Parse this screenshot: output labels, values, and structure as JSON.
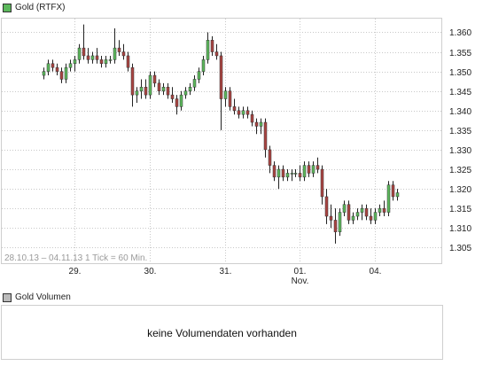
{
  "header": {
    "instrument_label": "Gold (RTFX)",
    "swatch_color": "#5cb85c"
  },
  "info_text": "28.10.13 – 04.11.13   1 Tick = 60 Min.",
  "volume": {
    "label": "Gold Volumen",
    "swatch_color": "#bbbbbb",
    "message": "keine Volumendaten vorhanden"
  },
  "colors": {
    "up": "#5cb85c",
    "down": "#a94442",
    "wick": "#222222",
    "grid": "#c8c8c8"
  },
  "chart_data": {
    "type": "candlestick",
    "x_labels": [
      {
        "label": "29.",
        "x": 7
      },
      {
        "label": "30.",
        "x": 24
      },
      {
        "label": "31.",
        "x": 41
      },
      {
        "label": "01.",
        "sublabel": "Nov.",
        "x": 58
      },
      {
        "label": "04.",
        "x": 75
      }
    ],
    "xlim": [
      -9.5,
      90
    ],
    "ylim": [
      1.301,
      1.3635
    ],
    "y_ticks": [
      1.305,
      1.31,
      1.315,
      1.32,
      1.325,
      1.33,
      1.335,
      1.34,
      1.345,
      1.35,
      1.355,
      1.36
    ],
    "y_tick_labels": [
      "1.305",
      "1.310",
      "1.315",
      "1.320",
      "1.325",
      "1.330",
      "1.335",
      "1.340",
      "1.345",
      "1.350",
      "1.355",
      "1.360"
    ],
    "candles": [
      [
        1.349,
        1.351,
        1.348,
        1.35
      ],
      [
        1.35,
        1.353,
        1.349,
        1.352
      ],
      [
        1.352,
        1.353,
        1.35,
        1.351
      ],
      [
        1.351,
        1.352,
        1.349,
        1.35
      ],
      [
        1.35,
        1.351,
        1.347,
        1.348
      ],
      [
        1.348,
        1.352,
        1.347,
        1.351
      ],
      [
        1.351,
        1.353,
        1.35,
        1.352
      ],
      [
        1.352,
        1.354,
        1.35,
        1.353
      ],
      [
        1.353,
        1.357,
        1.352,
        1.356
      ],
      [
        1.356,
        1.362,
        1.353,
        1.354
      ],
      [
        1.354,
        1.356,
        1.352,
        1.353
      ],
      [
        1.353,
        1.355,
        1.352,
        1.354
      ],
      [
        1.354,
        1.356,
        1.352,
        1.353
      ],
      [
        1.353,
        1.354,
        1.351,
        1.352
      ],
      [
        1.352,
        1.354,
        1.351,
        1.353
      ],
      [
        1.353,
        1.354,
        1.352,
        1.353
      ],
      [
        1.353,
        1.361,
        1.352,
        1.356
      ],
      [
        1.356,
        1.358,
        1.354,
        1.355
      ],
      [
        1.355,
        1.357,
        1.353,
        1.354
      ],
      [
        1.354,
        1.355,
        1.35,
        1.351
      ],
      [
        1.351,
        1.352,
        1.341,
        1.344
      ],
      [
        1.344,
        1.346,
        1.342,
        1.345
      ],
      [
        1.345,
        1.348,
        1.343,
        1.346
      ],
      [
        1.346,
        1.348,
        1.343,
        1.344
      ],
      [
        1.344,
        1.35,
        1.343,
        1.349
      ],
      [
        1.349,
        1.35,
        1.346,
        1.347
      ],
      [
        1.347,
        1.348,
        1.344,
        1.345
      ],
      [
        1.345,
        1.347,
        1.344,
        1.346
      ],
      [
        1.346,
        1.347,
        1.343,
        1.344
      ],
      [
        1.344,
        1.346,
        1.342,
        1.343
      ],
      [
        1.343,
        1.344,
        1.339,
        1.341
      ],
      [
        1.341,
        1.345,
        1.34,
        1.344
      ],
      [
        1.344,
        1.346,
        1.343,
        1.345
      ],
      [
        1.345,
        1.347,
        1.344,
        1.346
      ],
      [
        1.346,
        1.349,
        1.345,
        1.348
      ],
      [
        1.348,
        1.351,
        1.347,
        1.35
      ],
      [
        1.35,
        1.354,
        1.349,
        1.353
      ],
      [
        1.353,
        1.36,
        1.352,
        1.358
      ],
      [
        1.358,
        1.359,
        1.354,
        1.355
      ],
      [
        1.355,
        1.357,
        1.353,
        1.354
      ],
      [
        1.354,
        1.355,
        1.335,
        1.343
      ],
      [
        1.343,
        1.346,
        1.341,
        1.345
      ],
      [
        1.345,
        1.346,
        1.34,
        1.341
      ],
      [
        1.341,
        1.343,
        1.339,
        1.34
      ],
      [
        1.34,
        1.341,
        1.338,
        1.339
      ],
      [
        1.339,
        1.341,
        1.338,
        1.34
      ],
      [
        1.34,
        1.341,
        1.338,
        1.339
      ],
      [
        1.339,
        1.34,
        1.336,
        1.337
      ],
      [
        1.337,
        1.338,
        1.334,
        1.336
      ],
      [
        1.336,
        1.338,
        1.334,
        1.337
      ],
      [
        1.337,
        1.338,
        1.328,
        1.33
      ],
      [
        1.33,
        1.331,
        1.324,
        1.326
      ],
      [
        1.326,
        1.327,
        1.322,
        1.323
      ],
      [
        1.323,
        1.326,
        1.32,
        1.325
      ],
      [
        1.325,
        1.326,
        1.322,
        1.323
      ],
      [
        1.323,
        1.325,
        1.322,
        1.324
      ],
      [
        1.324,
        1.325,
        1.322,
        1.324
      ],
      [
        1.324,
        1.325,
        1.323,
        1.324
      ],
      [
        1.324,
        1.326,
        1.322,
        1.323
      ],
      [
        1.323,
        1.327,
        1.322,
        1.326
      ],
      [
        1.326,
        1.327,
        1.323,
        1.324
      ],
      [
        1.324,
        1.327,
        1.323,
        1.326
      ],
      [
        1.326,
        1.328,
        1.324,
        1.325
      ],
      [
        1.325,
        1.326,
        1.316,
        1.318
      ],
      [
        1.318,
        1.32,
        1.311,
        1.313
      ],
      [
        1.313,
        1.316,
        1.31,
        1.312
      ],
      [
        1.312,
        1.315,
        1.306,
        1.309
      ],
      [
        1.309,
        1.315,
        1.308,
        1.314
      ],
      [
        1.314,
        1.317,
        1.313,
        1.316
      ],
      [
        1.316,
        1.317,
        1.311,
        1.312
      ],
      [
        1.312,
        1.314,
        1.311,
        1.313
      ],
      [
        1.313,
        1.315,
        1.312,
        1.314
      ],
      [
        1.314,
        1.316,
        1.312,
        1.315
      ],
      [
        1.315,
        1.316,
        1.312,
        1.313
      ],
      [
        1.313,
        1.315,
        1.311,
        1.312
      ],
      [
        1.312,
        1.315,
        1.311,
        1.314
      ],
      [
        1.314,
        1.316,
        1.313,
        1.315
      ],
      [
        1.315,
        1.317,
        1.313,
        1.314
      ],
      [
        1.314,
        1.322,
        1.313,
        1.321
      ],
      [
        1.321,
        1.322,
        1.317,
        1.318
      ],
      [
        1.318,
        1.32,
        1.317,
        1.319
      ]
    ]
  }
}
